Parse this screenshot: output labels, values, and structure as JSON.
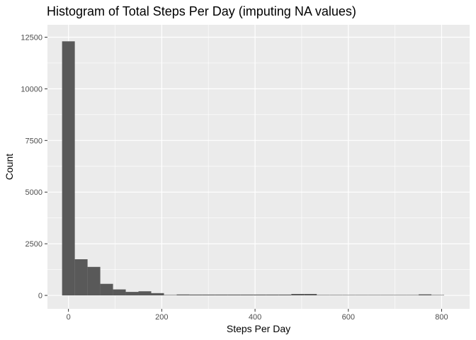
{
  "chart_data": {
    "type": "bar",
    "title": "Histogram of Total Steps Per Day (imputing NA values)",
    "xlabel": "Steps Per Day",
    "ylabel": "Count",
    "xlim": [
      -45,
      860
    ],
    "ylim": [
      -650,
      13100
    ],
    "x_ticks": [
      0,
      200,
      400,
      600,
      800
    ],
    "y_ticks": [
      0,
      2500,
      5000,
      7500,
      10000,
      12500
    ],
    "x_tick_labels": [
      "0",
      "200",
      "400",
      "600",
      "800"
    ],
    "y_tick_labels": [
      "0",
      "2500",
      "5000",
      "7500",
      "10000",
      "12500"
    ],
    "bin_width": 27.3,
    "bins": [
      {
        "center": 0,
        "count": 12300
      },
      {
        "center": 27.3,
        "count": 1750
      },
      {
        "center": 54.6,
        "count": 1380
      },
      {
        "center": 81.9,
        "count": 560
      },
      {
        "center": 109.2,
        "count": 290
      },
      {
        "center": 136.5,
        "count": 170
      },
      {
        "center": 163.8,
        "count": 200
      },
      {
        "center": 191.1,
        "count": 110
      },
      {
        "center": 218.4,
        "count": 20
      },
      {
        "center": 245.7,
        "count": 45
      },
      {
        "center": 273,
        "count": 40
      },
      {
        "center": 300.3,
        "count": 40
      },
      {
        "center": 327.6,
        "count": 40
      },
      {
        "center": 354.9,
        "count": 40
      },
      {
        "center": 382.2,
        "count": 40
      },
      {
        "center": 409.5,
        "count": 40
      },
      {
        "center": 436.8,
        "count": 40
      },
      {
        "center": 464.1,
        "count": 40
      },
      {
        "center": 491.4,
        "count": 70
      },
      {
        "center": 518.7,
        "count": 70
      },
      {
        "center": 546,
        "count": 20
      },
      {
        "center": 573.3,
        "count": 20
      },
      {
        "center": 600.6,
        "count": 20
      },
      {
        "center": 627.9,
        "count": 20
      },
      {
        "center": 655.2,
        "count": 20
      },
      {
        "center": 682.5,
        "count": 20
      },
      {
        "center": 709.8,
        "count": 20
      },
      {
        "center": 737.1,
        "count": 20
      },
      {
        "center": 764.4,
        "count": 50
      },
      {
        "center": 791.7,
        "count": 20
      }
    ],
    "grid": true,
    "colors": {
      "panel_background": "#ebebeb",
      "grid_major": "#ffffff",
      "bar_fill": "#595959"
    }
  }
}
